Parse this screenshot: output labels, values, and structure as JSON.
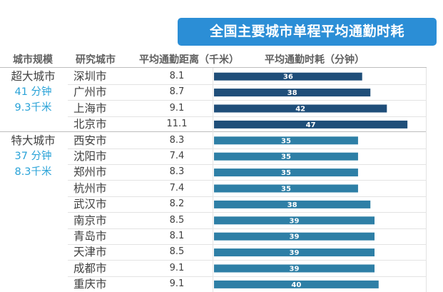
{
  "chart_data": {
    "type": "bar",
    "orientation": "horizontal",
    "title": "全国主要城市单程平均通勤时耗",
    "columns": [
      "城市规模",
      "研究城市",
      "平均通勤距离（千米）",
      "平均通勤时耗（分钟）"
    ],
    "groups": [
      {
        "name": "超大城市",
        "avg_time": "41 分钟",
        "avg_dist": "9.3千米",
        "rows": [
          0,
          3
        ]
      },
      {
        "name": "特大城市",
        "avg_time": "37 分钟",
        "avg_dist": "8.3千米",
        "rows": [
          4,
          13
        ]
      }
    ],
    "categories": [
      "深圳市",
      "广州市",
      "上海市",
      "北京市",
      "西安市",
      "沈阳市",
      "郑州市",
      "杭州市",
      "武汉市",
      "南京市",
      "青岛市",
      "天津市",
      "成都市",
      "重庆市"
    ],
    "distance_km": [
      "8.1",
      "8.7",
      "9.1",
      "11.1",
      "8.3",
      "7.4",
      "8.3",
      "7.4",
      "8.2",
      "8.5",
      "8.1",
      "8.5",
      "9.1",
      "9.1"
    ],
    "values": [
      36,
      38,
      42,
      47,
      35,
      35,
      35,
      35,
      38,
      39,
      39,
      39,
      39,
      40
    ],
    "xlim": [
      0,
      52
    ],
    "colors": {
      "megacity": "#1f4e79",
      "large_city": "#2e7fa6",
      "title_bg": "#2b8ed6",
      "stat_text": "#2aa3d8"
    },
    "grid": true,
    "legend": "none"
  }
}
